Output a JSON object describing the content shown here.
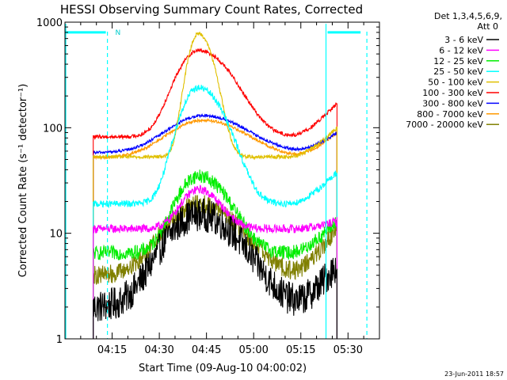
{
  "chart_data": {
    "type": "line",
    "title": "HESSI Observing Summary Count Rates, Corrected",
    "xlabel": "Start Time (09-Aug-10 04:00:02)",
    "ylabel": "Corrected Count Rate (s⁻¹ detector⁻¹)",
    "x_unit": "minutes after 04:00",
    "xlim": [
      0,
      100
    ],
    "ylim": [
      1,
      1000
    ],
    "y_scale": "log",
    "x_ticks": [
      {
        "v": 15,
        "label": "04:15"
      },
      {
        "v": 30,
        "label": "04:30"
      },
      {
        "v": 45,
        "label": "04:45"
      },
      {
        "v": 60,
        "label": "05:00"
      },
      {
        "v": 75,
        "label": "05:15"
      },
      {
        "v": 90,
        "label": "05:30"
      }
    ],
    "y_ticks": [
      {
        "v": 1,
        "label": "1"
      },
      {
        "v": 10,
        "label": "10"
      },
      {
        "v": 100,
        "label": "100"
      },
      {
        "v": 1000,
        "label": "1000"
      }
    ],
    "legend_header": [
      "Det 1,3,4,5,6,9,",
      "Att 0"
    ],
    "legend_position": "right",
    "footer_date": "23-Jun-2011 18:57",
    "markers": {
      "night_segments": [
        {
          "x0": 0,
          "x1": 13,
          "y": 800
        },
        {
          "x0": 83.5,
          "x1": 94,
          "y": 800
        }
      ],
      "night_label": {
        "x": 16,
        "y": 800,
        "text": "N"
      },
      "solid_lines": [
        0,
        83
      ],
      "dashed_lines": [
        13.5,
        96
      ]
    },
    "data_start": 9,
    "data_end": 86.5,
    "series": [
      {
        "name": "3 - 6 keV",
        "color": "#000000",
        "base": 2.0,
        "peak": 15,
        "peak_t": 42.5,
        "rise": 9,
        "decay": 11,
        "end": 5,
        "noise": 0.35
      },
      {
        "name": "6 - 12 keV",
        "color": "#ff00ff",
        "base": 11,
        "peak": 26,
        "peak_t": 42.5,
        "rise": 5,
        "decay": 6,
        "end": 13,
        "noise": 0.09
      },
      {
        "name": "12 - 25 keV",
        "color": "#00ee00",
        "base": 6.5,
        "peak": 35,
        "peak_t": 42.5,
        "rise": 6,
        "decay": 8,
        "end": 13,
        "noise": 0.15
      },
      {
        "name": "25 - 50 keV",
        "color": "#00ffff",
        "base": 19,
        "peak": 240,
        "peak_t": 42.5,
        "rise": 5,
        "decay": 7,
        "end": 38,
        "noise": 0.07
      },
      {
        "name": "50 - 100 keV",
        "color": "#e0c000",
        "base": 53,
        "peak": 780,
        "peak_t": 42.5,
        "rise": 3,
        "decay": 4,
        "end": 100,
        "noise": 0.04
      },
      {
        "name": "100 - 300 keV",
        "color": "#ff0000",
        "base": 82,
        "peak": 540,
        "peak_t": 42.5,
        "rise": 6,
        "decay": 9,
        "end": 170,
        "noise": 0.04
      },
      {
        "name": "300 - 800 keV",
        "color": "#0000ff",
        "base": 58,
        "peak": 130,
        "peak_t": 44,
        "rise": 10,
        "decay": 12,
        "end": 90,
        "noise": 0.03
      },
      {
        "name": "800 - 7000 keV",
        "color": "#ff9900",
        "base": 52,
        "peak": 118,
        "peak_t": 44,
        "rise": 10,
        "decay": 12,
        "end": 90,
        "noise": 0.03
      },
      {
        "name": "7000 - 20000 keV",
        "color": "#808000",
        "base": 4.0,
        "peak": 19,
        "peak_t": 42.5,
        "rise": 9,
        "decay": 11,
        "end": 11,
        "noise": 0.2
      }
    ]
  }
}
